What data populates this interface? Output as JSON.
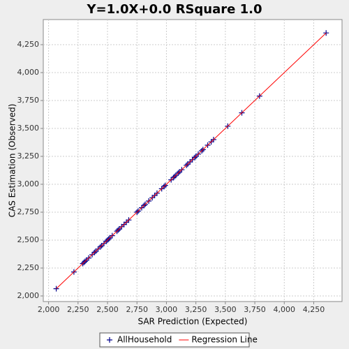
{
  "chart_data": {
    "type": "scatter",
    "title": "Y=1.0X+0.0    RSquare 1.0",
    "x_label": "SAR Prediction (Expected)",
    "y_label": "CAS Estimation (Observed)",
    "xlim": [
      1955,
      4490
    ],
    "ylim": [
      1950,
      4475
    ],
    "xticks": [
      {
        "value": 2000,
        "label": "2,000"
      },
      {
        "value": 2250,
        "label": "2,250"
      },
      {
        "value": 2500,
        "label": "2,500"
      },
      {
        "value": 2750,
        "label": "2,750"
      },
      {
        "value": 3000,
        "label": "3,000"
      },
      {
        "value": 3250,
        "label": "3,250"
      },
      {
        "value": 3500,
        "label": "3,500"
      },
      {
        "value": 3750,
        "label": "3,750"
      },
      {
        "value": 4000,
        "label": "4,000"
      },
      {
        "value": 4250,
        "label": "4,250"
      }
    ],
    "yticks": [
      {
        "value": 2000,
        "label": "2,000"
      },
      {
        "value": 2250,
        "label": "2,250"
      },
      {
        "value": 2500,
        "label": "2,500"
      },
      {
        "value": 2750,
        "label": "2,750"
      },
      {
        "value": 3000,
        "label": "3,000"
      },
      {
        "value": 3250,
        "label": "3,250"
      },
      {
        "value": 3500,
        "label": "3,500"
      },
      {
        "value": 3750,
        "label": "3,750"
      },
      {
        "value": 4000,
        "label": "4,000"
      },
      {
        "value": 4250,
        "label": "4,250"
      }
    ],
    "grid": true,
    "legend": "bottom",
    "series": [
      {
        "name": "AllHousehold",
        "color": "#00008b",
        "kind": "points",
        "x": [
          2065,
          2215,
          2290,
          2300,
          2310,
          2320,
          2340,
          2370,
          2390,
          2400,
          2420,
          2440,
          2450,
          2470,
          2490,
          2500,
          2510,
          2520,
          2540,
          2580,
          2590,
          2600,
          2620,
          2640,
          2660,
          2680,
          2750,
          2760,
          2790,
          2810,
          2820,
          2850,
          2880,
          2900,
          2920,
          2960,
          2980,
          2990,
          3040,
          3060,
          3070,
          3080,
          3100,
          3110,
          3130,
          3170,
          3180,
          3200,
          3220,
          3240,
          3250,
          3270,
          3300,
          3310,
          3350,
          3380,
          3400,
          3520,
          3640,
          3790,
          4355
        ],
        "values": [
          2065,
          2215,
          2290,
          2300,
          2310,
          2320,
          2340,
          2370,
          2390,
          2400,
          2420,
          2440,
          2450,
          2470,
          2490,
          2500,
          2510,
          2520,
          2540,
          2580,
          2590,
          2600,
          2620,
          2640,
          2660,
          2680,
          2750,
          2760,
          2790,
          2810,
          2820,
          2850,
          2880,
          2900,
          2920,
          2960,
          2980,
          2990,
          3040,
          3060,
          3070,
          3080,
          3100,
          3110,
          3130,
          3170,
          3180,
          3200,
          3220,
          3240,
          3250,
          3270,
          3300,
          3310,
          3350,
          3380,
          3400,
          3520,
          3640,
          3790,
          4355
        ]
      },
      {
        "name": "Regression Line",
        "color": "#ff0000",
        "kind": "line",
        "x": [
          2065,
          4355
        ],
        "values": [
          2065,
          4355
        ]
      }
    ]
  }
}
